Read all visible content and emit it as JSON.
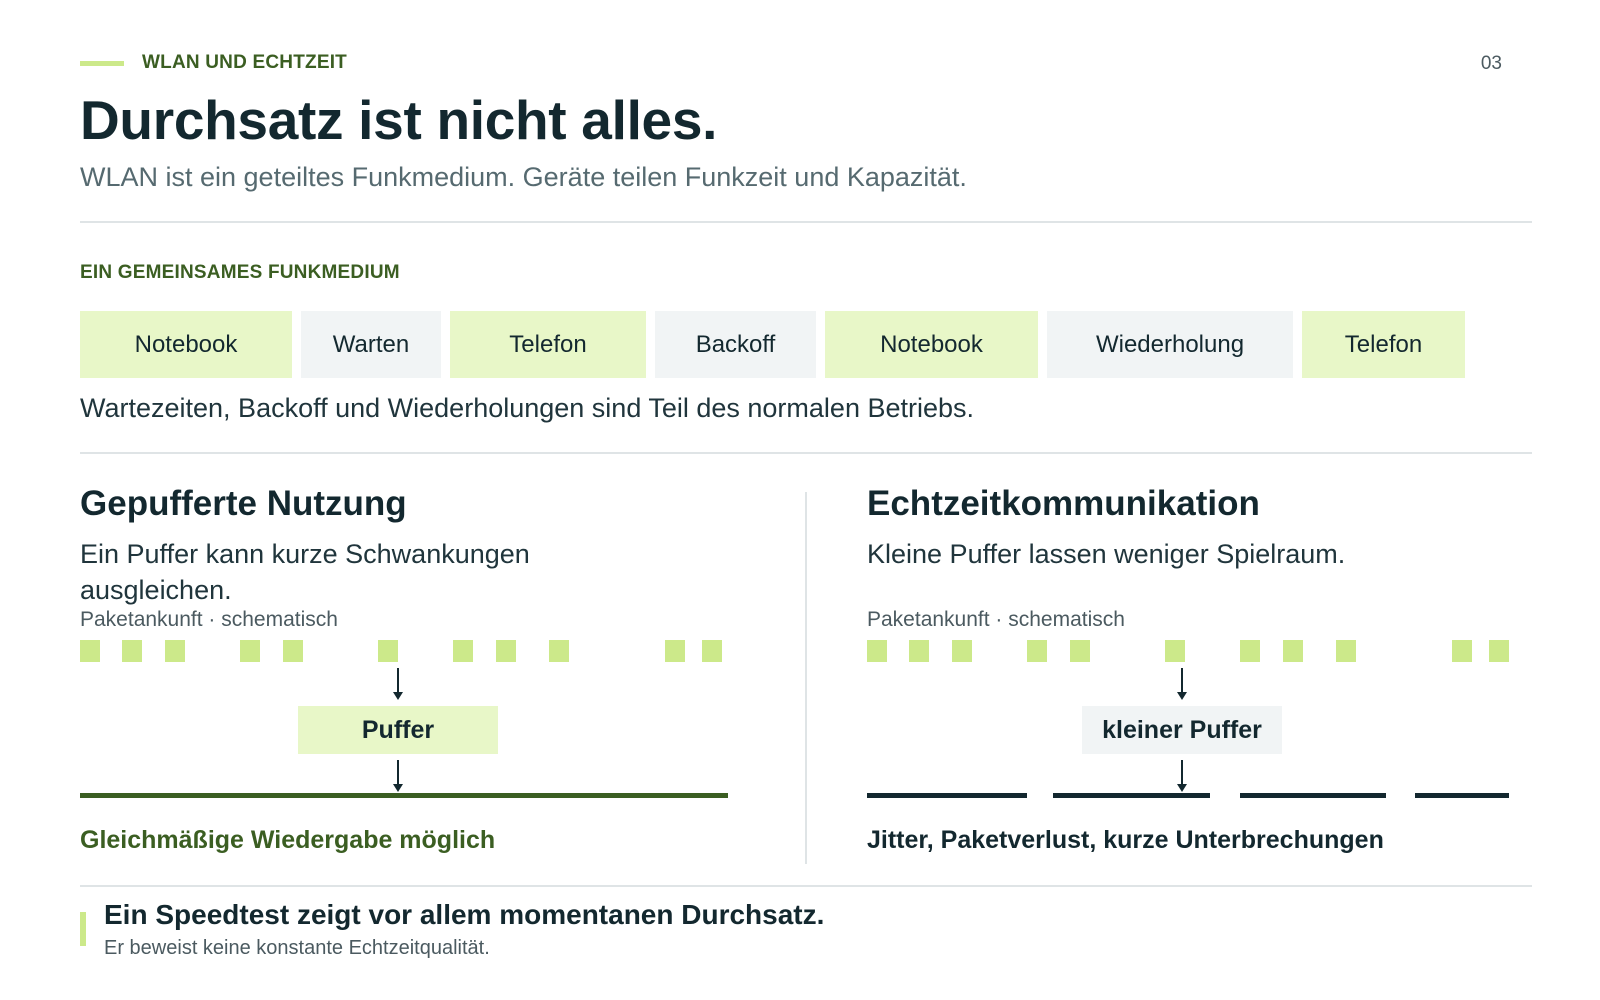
{
  "header": {
    "kicker": "WLAN UND ECHTZEIT",
    "page_number": "03",
    "title": "Durchsatz ist nicht alles.",
    "subtitle": "WLAN ist ein geteiltes Funkmedium. Geräte teilen Funkzeit und Kapazität."
  },
  "airtime": {
    "label": "EIN GEMEINSAMES FUNKMEDIUM",
    "segments": [
      {
        "label": "Notebook",
        "kind": "device"
      },
      {
        "label": "Warten",
        "kind": "idle"
      },
      {
        "label": "Telefon",
        "kind": "device"
      },
      {
        "label": "Backoff",
        "kind": "idle"
      },
      {
        "label": "Notebook",
        "kind": "device"
      },
      {
        "label": "Wiederholung",
        "kind": "idle"
      },
      {
        "label": "Telefon",
        "kind": "device"
      }
    ],
    "note": "Wartezeiten, Backoff und Wiederholungen sind Teil des normalen Betriebs."
  },
  "left_panel": {
    "title": "Gepufferte Nutzung",
    "description": "Ein Puffer kann kurze Schwankungen ausgleichen.",
    "caption": "Paketankunft · schematisch",
    "buffer_label": "Puffer",
    "outcome": "Gleichmäßige Wiedergabe möglich"
  },
  "right_panel": {
    "title": "Echtzeitkommunikation",
    "description": "Kleine Puffer lassen weniger Spielraum.",
    "caption": "Paketankunft · schematisch",
    "buffer_label": "kleiner Puffer",
    "outcome": "Jitter, Paketverlust, kurze Unterbrechungen"
  },
  "takeaway": {
    "title": "Ein Speedtest zeigt vor allem momentanen Durchsatz.",
    "subtitle": "Er beweist keine konstante Echtzeitqualität."
  },
  "colors": {
    "accent_green": "#cce98a",
    "light_green": "#e8f7c8",
    "dark_green": "#3b5e22",
    "ink": "#13282f",
    "neutral_bg": "#f1f4f5"
  }
}
